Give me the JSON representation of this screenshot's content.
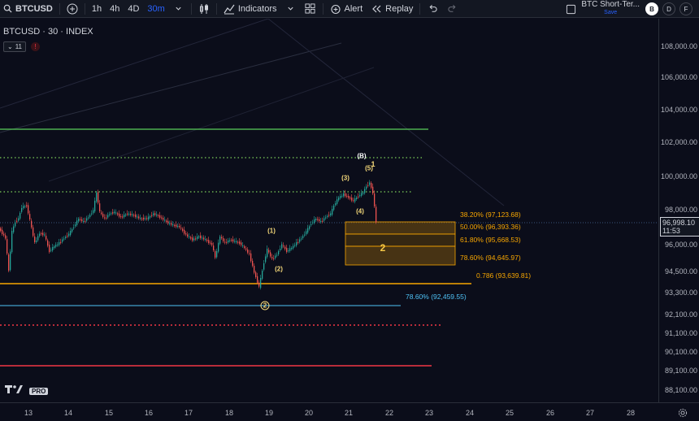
{
  "toolbar": {
    "symbol": "BTCUSD",
    "intervals": [
      "1h",
      "4h",
      "4D",
      "30m"
    ],
    "active_interval": "30m",
    "indicators_label": "Indicators",
    "alert_label": "Alert",
    "replay_label": "Replay",
    "layout_title": "BTC Short-Ter...",
    "layout_save": "Save",
    "account_buttons": [
      "B",
      "D",
      "F"
    ]
  },
  "legend": {
    "title": "BTCUSD · 30 · INDEX",
    "indicator_count": "11",
    "alert_mark": "!"
  },
  "price_axis": {
    "ticks": [
      {
        "label": "108,000.00",
        "value": 108000
      },
      {
        "label": "106,000.00",
        "value": 106000
      },
      {
        "label": "104,000.00",
        "value": 104000
      },
      {
        "label": "102,000.00",
        "value": 102000
      },
      {
        "label": "100,000.00",
        "value": 100000
      },
      {
        "label": "98,000.00",
        "value": 98000
      },
      {
        "label": "96,000.00",
        "value": 96000
      },
      {
        "label": "94,500.00",
        "value": 94500
      },
      {
        "label": "93,300.00",
        "value": 93300
      },
      {
        "label": "92,100.00",
        "value": 92100
      },
      {
        "label": "91,100.00",
        "value": 91100
      },
      {
        "label": "90,100.00",
        "value": 90100
      },
      {
        "label": "89,100.00",
        "value": 89100
      },
      {
        "label": "88,100.00",
        "value": 88100
      }
    ],
    "current_price": "96,998.10",
    "countdown": "11:53"
  },
  "time_axis": {
    "ticks": [
      "13",
      "14",
      "15",
      "16",
      "17",
      "18",
      "19",
      "20",
      "21",
      "22",
      "23",
      "24",
      "25",
      "26",
      "27",
      "28"
    ]
  },
  "fib_levels": [
    {
      "label": "38.20% (97,123.68)",
      "color": "#f7a600"
    },
    {
      "label": "50.00% (96,393.36)",
      "color": "#f7a600"
    },
    {
      "label": "61.80% (95,668.53)",
      "color": "#f7a600"
    },
    {
      "label": "78.60% (94,645.97)",
      "color": "#f7a600"
    },
    {
      "label": "0.786 (93,639.81)",
      "color": "#f7a600"
    },
    {
      "label": "78.60% (92,459.55)",
      "color": "#4fc3f7"
    }
  ],
  "wave_labels": {
    "w1": "(1)",
    "w2": "(2)",
    "w3": "(3)",
    "w4": "(4)",
    "w5": "(5)",
    "wB": "(B)",
    "wTop": "1",
    "wBox": "2",
    "wCircle": "2"
  },
  "logo": {
    "pro": "PRO"
  },
  "colors": {
    "background": "#0b0d1a",
    "green_line": "#4caf50",
    "orange_line": "#f7a600",
    "cyan_line": "#4fc3f7",
    "red_line": "#f23645",
    "accent": "#2962ff"
  }
}
